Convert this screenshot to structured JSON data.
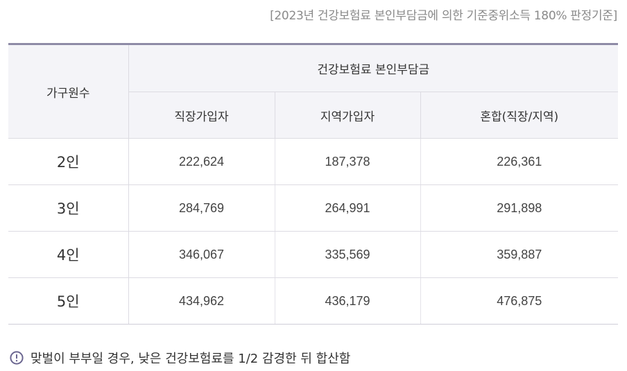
{
  "caption": "[2023년 건강보험료 본인부담금에 의한 기준중위소득 180% 판정기준]",
  "table": {
    "row_header": "가구원수",
    "group_header": "건강보험료 본인부담금",
    "columns": [
      "직장가입자",
      "지역가입자",
      "혼합(직장/지역)"
    ],
    "rows": [
      {
        "label": "2인",
        "values": [
          "222,624",
          "187,378",
          "226,361"
        ]
      },
      {
        "label": "3인",
        "values": [
          "284,769",
          "264,991",
          "291,898"
        ]
      },
      {
        "label": "4인",
        "values": [
          "346,067",
          "335,569",
          "359,887"
        ]
      },
      {
        "label": "5인",
        "values": [
          "434,962",
          "436,179",
          "476,875"
        ]
      }
    ]
  },
  "note": {
    "icon": "info-icon",
    "text": "맞벌이 부부일 경우, 낮은 건강보험료를 1/2 감경한 뒤 합산함"
  },
  "colors": {
    "accent_border": "#8e8ba6",
    "header_bg": "#f4f4f8",
    "icon_color": "#6b6690"
  }
}
